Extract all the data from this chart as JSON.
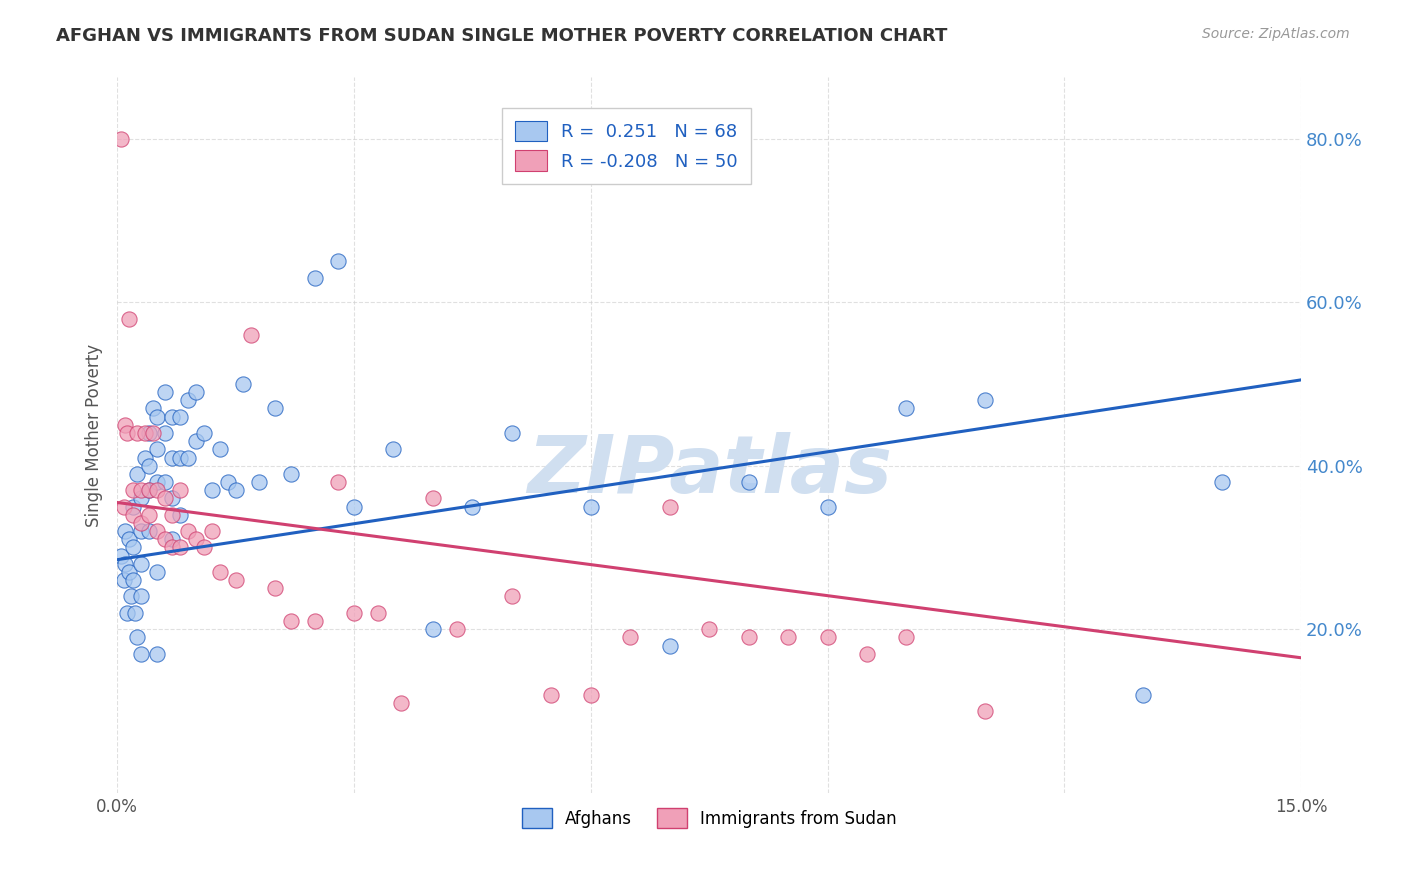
{
  "title": "AFGHAN VS IMMIGRANTS FROM SUDAN SINGLE MOTHER POVERTY CORRELATION CHART",
  "source": "Source: ZipAtlas.com",
  "ylabel": "Single Mother Poverty",
  "y_ticks": [
    0.2,
    0.4,
    0.6,
    0.8
  ],
  "y_tick_labels": [
    "20.0%",
    "40.0%",
    "60.0%",
    "80.0%"
  ],
  "x_min": 0.0,
  "x_max": 0.15,
  "y_min": 0.0,
  "y_max": 0.875,
  "legend_labels": [
    "Afghans",
    "Immigrants from Sudan"
  ],
  "legend_r_blue": "R =  0.251",
  "legend_n_blue": "N = 68",
  "legend_r_pink": "R = -0.208",
  "legend_n_pink": "N = 50",
  "color_blue": "#a8c8f0",
  "color_pink": "#f0a0b8",
  "color_blue_line": "#2060c0",
  "color_pink_line": "#d04070",
  "watermark": "ZIPatlas",
  "watermark_color": "#d0dff0",
  "blue_scatter_x": [
    0.0005,
    0.0008,
    0.001,
    0.001,
    0.0012,
    0.0015,
    0.0015,
    0.0018,
    0.002,
    0.002,
    0.002,
    0.0022,
    0.0025,
    0.0025,
    0.003,
    0.003,
    0.003,
    0.003,
    0.003,
    0.0035,
    0.004,
    0.004,
    0.004,
    0.004,
    0.0045,
    0.005,
    0.005,
    0.005,
    0.005,
    0.005,
    0.006,
    0.006,
    0.006,
    0.007,
    0.007,
    0.007,
    0.007,
    0.008,
    0.008,
    0.008,
    0.009,
    0.009,
    0.01,
    0.01,
    0.011,
    0.012,
    0.013,
    0.014,
    0.015,
    0.016,
    0.018,
    0.02,
    0.022,
    0.025,
    0.028,
    0.03,
    0.035,
    0.04,
    0.045,
    0.05,
    0.06,
    0.07,
    0.08,
    0.09,
    0.1,
    0.11,
    0.13,
    0.14
  ],
  "blue_scatter_y": [
    0.29,
    0.26,
    0.32,
    0.28,
    0.22,
    0.31,
    0.27,
    0.24,
    0.35,
    0.3,
    0.26,
    0.22,
    0.19,
    0.39,
    0.36,
    0.32,
    0.28,
    0.24,
    0.17,
    0.41,
    0.44,
    0.4,
    0.37,
    0.32,
    0.47,
    0.46,
    0.42,
    0.38,
    0.27,
    0.17,
    0.49,
    0.44,
    0.38,
    0.46,
    0.41,
    0.36,
    0.31,
    0.46,
    0.41,
    0.34,
    0.48,
    0.41,
    0.49,
    0.43,
    0.44,
    0.37,
    0.42,
    0.38,
    0.37,
    0.5,
    0.38,
    0.47,
    0.39,
    0.63,
    0.65,
    0.35,
    0.42,
    0.2,
    0.35,
    0.44,
    0.35,
    0.18,
    0.38,
    0.35,
    0.47,
    0.48,
    0.12,
    0.38
  ],
  "pink_scatter_x": [
    0.0005,
    0.0008,
    0.001,
    0.0012,
    0.0015,
    0.002,
    0.002,
    0.0025,
    0.003,
    0.003,
    0.0035,
    0.004,
    0.004,
    0.0045,
    0.005,
    0.005,
    0.006,
    0.006,
    0.007,
    0.007,
    0.008,
    0.008,
    0.009,
    0.01,
    0.011,
    0.012,
    0.013,
    0.015,
    0.017,
    0.02,
    0.022,
    0.025,
    0.028,
    0.03,
    0.033,
    0.036,
    0.04,
    0.043,
    0.05,
    0.055,
    0.06,
    0.065,
    0.07,
    0.075,
    0.08,
    0.085,
    0.09,
    0.095,
    0.1,
    0.11
  ],
  "pink_scatter_y": [
    0.8,
    0.35,
    0.45,
    0.44,
    0.58,
    0.37,
    0.34,
    0.44,
    0.37,
    0.33,
    0.44,
    0.37,
    0.34,
    0.44,
    0.37,
    0.32,
    0.36,
    0.31,
    0.34,
    0.3,
    0.37,
    0.3,
    0.32,
    0.31,
    0.3,
    0.32,
    0.27,
    0.26,
    0.56,
    0.25,
    0.21,
    0.21,
    0.38,
    0.22,
    0.22,
    0.11,
    0.36,
    0.2,
    0.24,
    0.12,
    0.12,
    0.19,
    0.35,
    0.2,
    0.19,
    0.19,
    0.19,
    0.17,
    0.19,
    0.1
  ],
  "blue_line_x": [
    0.0,
    0.15
  ],
  "blue_line_y": [
    0.285,
    0.505
  ],
  "pink_line_x": [
    0.0,
    0.15
  ],
  "pink_line_y": [
    0.355,
    0.165
  ],
  "background_color": "#ffffff",
  "grid_color": "#cccccc",
  "title_color": "#333333",
  "axis_label_color": "#555555",
  "tick_color_right": "#4488cc"
}
